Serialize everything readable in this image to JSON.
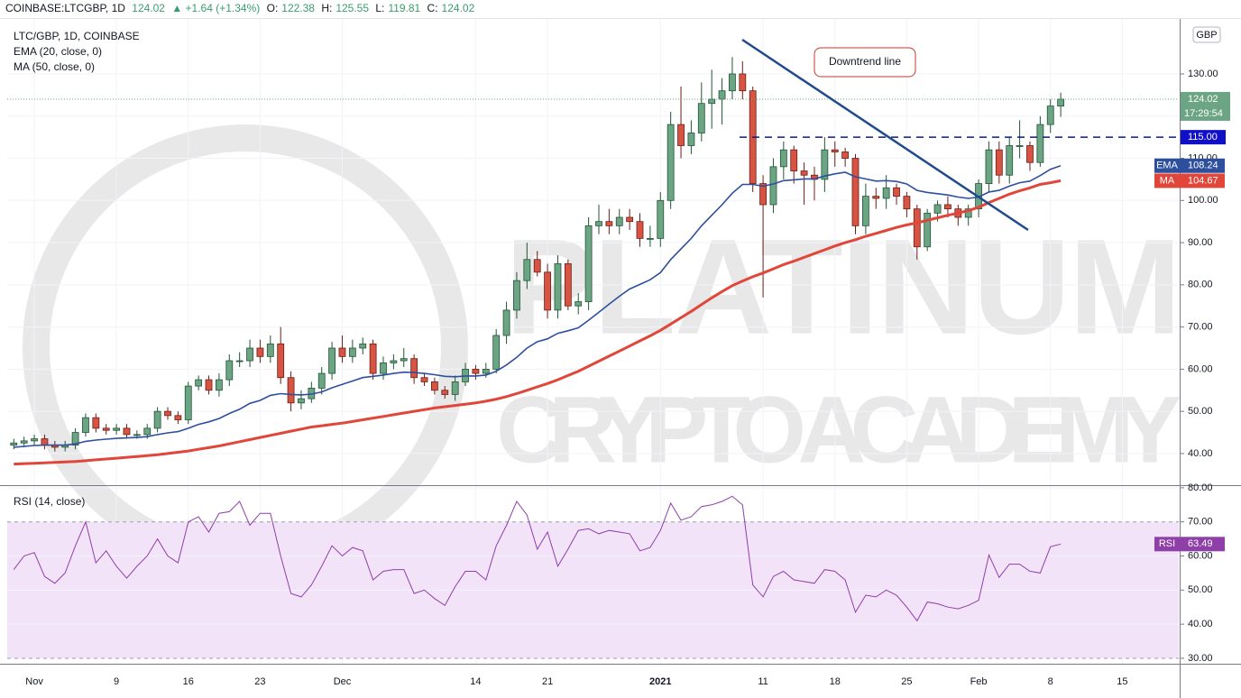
{
  "header": {
    "symbol": "COINBASE:LTCGBP, 1D",
    "change": "▲ +1.64 (+1.34%)",
    "o": "O:",
    "h": "H:",
    "l": "L:",
    "c": "C:"
  },
  "watermark": [
    "PLATINUM",
    "CRYPTO ACADEMY"
  ],
  "chart_data": [
    {
      "type": "candlestick",
      "title": "LTC/GBP, 1D, COINBASE",
      "currency": "GBP",
      "categories": [
        null,
        null,
        "Nov",
        null,
        null,
        null,
        null,
        null,
        null,
        null,
        "9",
        null,
        null,
        null,
        null,
        null,
        null,
        "16",
        null,
        null,
        null,
        null,
        null,
        null,
        "23",
        null,
        null,
        null,
        null,
        null,
        null,
        null,
        "Dec",
        null,
        null,
        null,
        null,
        null,
        null,
        null,
        null,
        null,
        null,
        null,
        null,
        "14",
        null,
        null,
        null,
        null,
        null,
        null,
        "21",
        null,
        null,
        null,
        null,
        null,
        null,
        null,
        null,
        null,
        null,
        "2021",
        null,
        null,
        null,
        null,
        null,
        null,
        null,
        null,
        null,
        "11",
        null,
        null,
        null,
        null,
        null,
        null,
        "18",
        null,
        null,
        null,
        null,
        null,
        null,
        "25",
        null,
        null,
        null,
        null,
        null,
        null,
        "Feb",
        null,
        null,
        null,
        null,
        null,
        null,
        "8",
        null,
        null,
        null,
        null,
        null,
        null,
        "15",
        null,
        null,
        null,
        null,
        null
      ],
      "open": [
        42,
        42.5,
        43,
        43.5,
        42,
        41.5,
        42,
        45,
        48.5,
        46,
        45.5,
        46,
        44.5,
        44.5,
        46,
        50,
        49,
        48,
        56,
        57.5,
        55,
        57.5,
        62,
        62,
        65,
        63,
        66,
        58,
        52,
        53,
        55.5,
        59,
        65,
        63,
        65,
        66,
        59,
        61.5,
        62,
        62.5,
        58,
        57,
        55,
        54,
        57,
        60,
        59,
        60,
        68,
        74,
        81,
        86,
        83,
        74,
        85,
        75,
        76,
        94,
        95,
        94,
        96,
        95,
        91,
        91,
        100,
        118,
        113,
        116,
        123,
        124,
        126,
        130,
        126,
        104,
        99,
        108,
        112,
        107,
        106,
        105,
        112,
        111.5,
        110,
        94,
        101,
        100.5,
        103,
        101,
        98,
        89,
        97,
        99,
        98,
        96,
        98,
        104,
        112,
        106,
        113,
        113,
        109,
        118,
        122.38,
        null,
        null,
        null,
        null,
        null,
        null,
        null,
        null,
        null,
        null,
        null
      ],
      "high": [
        43.5,
        44,
        44.5,
        44.5,
        43,
        43,
        46,
        49.5,
        49.5,
        47,
        47,
        47,
        45.5,
        47,
        51,
        51,
        50,
        57,
        58.5,
        58.5,
        59,
        63.5,
        64,
        67,
        67,
        68,
        70,
        59.5,
        55,
        57,
        60.5,
        66.5,
        68,
        67,
        67.5,
        67,
        63,
        63.5,
        65,
        63.5,
        59,
        58,
        56,
        58.5,
        61.5,
        61,
        61.5,
        69.5,
        76,
        83,
        90,
        88,
        85,
        87,
        86,
        78,
        96,
        99,
        98,
        98,
        98,
        97,
        94,
        102,
        121,
        127,
        119,
        128,
        131,
        129,
        134,
        133,
        127,
        106,
        110,
        114,
        113,
        109,
        108,
        115,
        114,
        112.5,
        111,
        104,
        103,
        106,
        104,
        102,
        99,
        98,
        100,
        101,
        99,
        99,
        105,
        114,
        114,
        115,
        119,
        114,
        120,
        124,
        125.55,
        null,
        null,
        null,
        null,
        null,
        null,
        null,
        null,
        null,
        null,
        null
      ],
      "low": [
        41,
        41.5,
        42,
        41,
        40.5,
        40.5,
        41,
        44,
        45,
        44.5,
        44.5,
        43.5,
        43.5,
        43.5,
        45,
        48,
        47,
        47,
        55,
        54,
        53.5,
        56,
        60.5,
        60.5,
        61.5,
        61.5,
        56.5,
        50,
        50.5,
        52,
        54,
        57.5,
        61.5,
        61.5,
        63.5,
        57.5,
        57.5,
        60,
        60.5,
        56.5,
        56,
        54,
        53,
        52.5,
        56,
        57.5,
        58,
        59,
        66,
        72,
        79,
        82,
        72,
        72,
        74,
        73,
        74,
        92,
        92,
        92,
        93,
        89,
        89,
        89,
        98,
        110,
        111,
        114,
        117,
        118,
        124,
        124,
        102,
        77,
        97,
        105,
        104,
        99,
        100,
        102,
        108,
        108,
        92,
        92,
        98,
        98,
        99,
        96,
        86,
        88,
        95,
        96,
        94,
        94,
        96,
        102,
        104,
        104,
        110,
        107,
        108,
        116,
        119.81,
        null,
        null,
        null,
        null,
        null,
        null,
        null,
        null,
        null,
        null,
        null
      ],
      "close": [
        42.5,
        43,
        43.5,
        42,
        41.5,
        42,
        45,
        48.5,
        46,
        45.5,
        46,
        44.5,
        44.5,
        46,
        50,
        49,
        48,
        56,
        57.5,
        55,
        57.5,
        62,
        62,
        65,
        63,
        66,
        58,
        52,
        53,
        55.5,
        59,
        65,
        63,
        65,
        66,
        59,
        61.5,
        62,
        62.5,
        58,
        57,
        55,
        54,
        57,
        60,
        59,
        60,
        68,
        74,
        81,
        86,
        83,
        74,
        85,
        75,
        76,
        94,
        95,
        94,
        96,
        95,
        91,
        91,
        100,
        118,
        113,
        116,
        123,
        124,
        126,
        130,
        126,
        104,
        99,
        108,
        112,
        107,
        106,
        105,
        112,
        111.5,
        110,
        94,
        101,
        100.5,
        103,
        101,
        98,
        89,
        97,
        99,
        98,
        96,
        98,
        104,
        112,
        106,
        113,
        113,
        109,
        118,
        122.38,
        124.02,
        null,
        null,
        null,
        null,
        null,
        null,
        null,
        null,
        null,
        null,
        null
      ],
      "up_color": "#6ba583",
      "up_border": "#225437",
      "down_color": "#d75442",
      "down_border": "#6b1d16",
      "series": [
        {
          "name": "EMA (20, close, 0)",
          "label": "EMA",
          "color": "#2d4f9e",
          "values": [
            41.5,
            41.7,
            41.9,
            42,
            42,
            42,
            42.3,
            42.9,
            43.2,
            43.4,
            43.6,
            43.7,
            43.8,
            44,
            44.5,
            44.9,
            45.2,
            46,
            46.9,
            47.5,
            48.3,
            49.5,
            50.5,
            51.9,
            52.6,
            53.8,
            54.2,
            54,
            53.9,
            54.1,
            54.6,
            55.6,
            56.4,
            57.2,
            58,
            58.3,
            58.6,
            59,
            59.3,
            59.2,
            59,
            58.7,
            58.3,
            58.2,
            58.4,
            58.4,
            58.6,
            59.5,
            61,
            62.8,
            65,
            66.5,
            67.2,
            68.5,
            69.1,
            69.8,
            71.6,
            73.5,
            75.4,
            77.3,
            79,
            80.1,
            81.2,
            82.9,
            86,
            88.5,
            91,
            94,
            96.5,
            99,
            101.7,
            103.8,
            103.8,
            103.4,
            103.9,
            104.7,
            104.9,
            105.1,
            105.1,
            105.8,
            106.3,
            106.7,
            105.6,
            105.1,
            104.6,
            104.7,
            104.5,
            103.9,
            102.4,
            101.9,
            101.6,
            101.3,
            100.8,
            100.5,
            100.8,
            102,
            102.4,
            103.4,
            104.2,
            104.6,
            105.9,
            107.4,
            108.24,
            null,
            null,
            null,
            null,
            null,
            null,
            null,
            null,
            null,
            null,
            null
          ]
        },
        {
          "name": "MA (50, close, 0)",
          "label": "MA",
          "color": "#e0463a",
          "values": [
            37.5,
            37.6,
            37.7,
            37.8,
            37.9,
            38,
            38.1,
            38.3,
            38.5,
            38.7,
            38.9,
            39.1,
            39.3,
            39.5,
            39.7,
            40,
            40.3,
            40.6,
            41,
            41.4,
            41.8,
            42.3,
            42.8,
            43.3,
            43.8,
            44.3,
            44.8,
            45.3,
            45.8,
            46.3,
            46.6,
            46.9,
            47.2,
            47.6,
            48,
            48.4,
            48.8,
            49.2,
            49.6,
            50,
            50.4,
            50.8,
            51.1,
            51.4,
            51.7,
            52,
            52.4,
            52.9,
            53.5,
            54.2,
            55,
            55.8,
            56.6,
            57.5,
            58.5,
            59.5,
            60.7,
            61.9,
            63.1,
            64.3,
            65.5,
            66.7,
            67.9,
            69.2,
            70.7,
            72.2,
            73.7,
            75.3,
            76.9,
            78.4,
            79.8,
            80.9,
            81.9,
            82.8,
            83.8,
            84.8,
            85.6,
            86.5,
            87.4,
            88.3,
            89.2,
            90,
            90.7,
            91.5,
            92.2,
            92.9,
            93.6,
            94.2,
            94.7,
            95.3,
            95.9,
            96.5,
            97,
            97.6,
            98.4,
            99.5,
            100.5,
            101.5,
            102.3,
            103,
            103.8,
            104.2,
            104.67,
            null,
            null,
            null,
            null,
            null,
            null,
            null,
            null,
            null,
            null,
            null
          ]
        }
      ],
      "ylim": [
        32.5,
        143.25
      ],
      "yticks": [
        {
          "value": 40,
          "label": "40.00"
        },
        {
          "value": 50,
          "label": "50.00"
        },
        {
          "value": 60,
          "label": "60.00"
        },
        {
          "value": 70,
          "label": "70.00"
        },
        {
          "value": 80,
          "label": "80.00"
        },
        {
          "value": 90,
          "label": "90.00"
        },
        {
          "value": 100,
          "label": "100.00"
        },
        {
          "value": 110,
          "label": "110.00"
        },
        {
          "value": 120,
          "label": "120.00"
        },
        {
          "value": 130,
          "label": "130.00"
        }
      ],
      "level": {
        "value": 115,
        "label": "115.00"
      },
      "countdown": "17:29:54",
      "annotation": "Downtrend line",
      "grid": true
    },
    {
      "type": "line",
      "title": "RSI (14, close)",
      "series": [
        {
          "name": "RSI",
          "color": "#8e3fa8",
          "values": [
            56,
            60,
            61,
            54,
            52,
            55,
            63,
            70,
            58,
            61.5,
            57,
            53.5,
            57,
            60,
            65,
            60,
            58,
            70,
            71.5,
            67,
            72.5,
            73,
            76,
            69,
            72.5,
            72.5,
            60,
            49,
            48,
            51.5,
            57,
            63,
            60,
            62.5,
            61.5,
            53,
            55.5,
            56,
            56,
            49,
            50,
            47.5,
            45.5,
            51,
            55.5,
            55.5,
            53,
            63,
            69,
            76,
            72,
            62,
            67,
            57,
            62,
            67.5,
            68,
            66.5,
            67.5,
            67,
            66.5,
            61.5,
            62.5,
            67.5,
            75.5,
            70.5,
            71.5,
            74.5,
            75,
            76,
            77.5,
            75,
            51.5,
            48,
            54,
            55.5,
            53,
            52.5,
            52,
            56,
            55.5,
            53,
            43.5,
            48.5,
            48,
            50,
            48.5,
            45,
            41,
            46.5,
            46,
            45,
            44.5,
            45.5,
            47,
            60.3,
            53.7,
            57.6,
            57.6,
            55.5,
            55,
            62.7,
            63.49,
            null,
            null,
            null,
            null,
            null,
            null,
            null,
            null,
            null,
            null,
            null
          ]
        }
      ],
      "band": [
        30,
        70
      ],
      "band_color": "#f3e3f9",
      "ylim": [
        28.4,
        80.5
      ],
      "yticks": [
        {
          "value": 30,
          "label": "30.00"
        },
        {
          "value": 40,
          "label": "40.00"
        },
        {
          "value": 50,
          "label": "50.00"
        },
        {
          "value": 60,
          "label": "60.00"
        },
        {
          "value": 70,
          "label": "70.00"
        },
        {
          "value": 80,
          "label": "80.00"
        }
      ],
      "grid": true
    }
  ]
}
